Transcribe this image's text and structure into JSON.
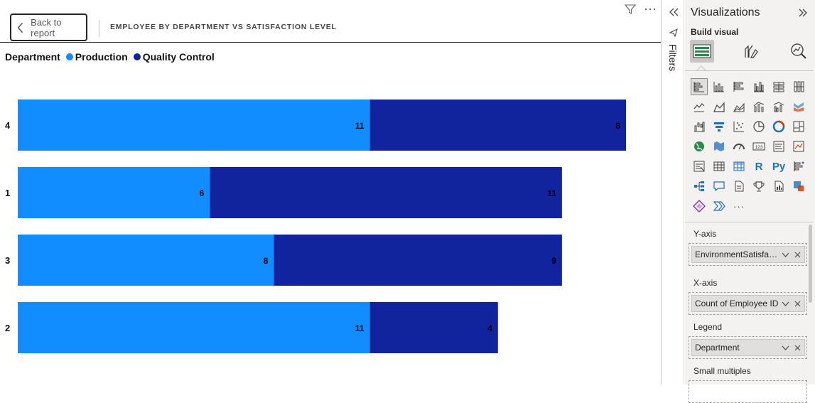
{
  "report": {
    "back_button_label": "Back to report",
    "visual_title": "EMPLOYEE BY DEPARTMENT VS SATISFACTION LEVEL",
    "legend": {
      "title": "Department",
      "items": [
        {
          "label": "Production",
          "color": "#118DFF"
        },
        {
          "label": "Quality Control",
          "color": "#12239E"
        }
      ]
    }
  },
  "chart_data": {
    "type": "bar",
    "orientation": "horizontal",
    "stacked": true,
    "categories": [
      "4",
      "1",
      "3",
      "2"
    ],
    "series": [
      {
        "name": "Production",
        "color": "#118DFF",
        "values": [
          11,
          6,
          8,
          11
        ]
      },
      {
        "name": "Quality Control",
        "color": "#12239E",
        "values": [
          8,
          11,
          9,
          4
        ]
      }
    ],
    "legend_title": "Department",
    "xlabel": "",
    "ylabel": "",
    "xlim": [
      0,
      19
    ],
    "grid": false,
    "data_labels": true
  },
  "filters_pane": {
    "label": "Filters"
  },
  "viz_pane": {
    "title": "Visualizations",
    "build_visual_label": "Build visual",
    "build_tabs": [
      "build-visual-tab-icon",
      "format-visual-tab-icon",
      "analytics-tab-icon"
    ],
    "viz_icons": [
      "stacked-bar-chart-icon",
      "stacked-column-chart-icon",
      "clustered-bar-chart-icon",
      "clustered-column-chart-icon",
      "100-stacked-bar-chart-icon",
      "100-stacked-column-chart-icon",
      "line-chart-icon",
      "area-chart-icon",
      "stacked-area-chart-icon",
      "line-stacked-column-icon",
      "line-clustered-column-icon",
      "ribbon-chart-icon",
      "waterfall-chart-icon",
      "funnel-chart-icon",
      "scatter-chart-icon",
      "pie-chart-icon",
      "donut-chart-icon",
      "treemap-icon",
      "map-icon",
      "filled-map-icon",
      "gauge-icon",
      "card-icon",
      "multi-row-card-icon",
      "kpi-icon",
      "slicer-icon",
      "table-icon",
      "matrix-icon",
      "r-visual-icon",
      "python-visual-icon",
      "key-influencers-icon",
      "decomposition-tree-icon",
      "qa-icon",
      "smart-narrative-icon",
      "trophy-icon",
      "paginated-report-icon",
      "power-apps-icon",
      "power-automate-icon",
      "power-automate-flow-icon",
      "more-visuals-icon"
    ],
    "r_text": "R",
    "py_text": "Py",
    "card_text": "123",
    "more_text": "···",
    "wells": [
      {
        "label": "Y-axis",
        "field": "EnvironmentSatisfacti..."
      },
      {
        "label": "X-axis",
        "field": "Count of Employee ID"
      },
      {
        "label": "Legend",
        "field": "Department"
      },
      {
        "label": "Small multiples",
        "field": ""
      }
    ]
  }
}
